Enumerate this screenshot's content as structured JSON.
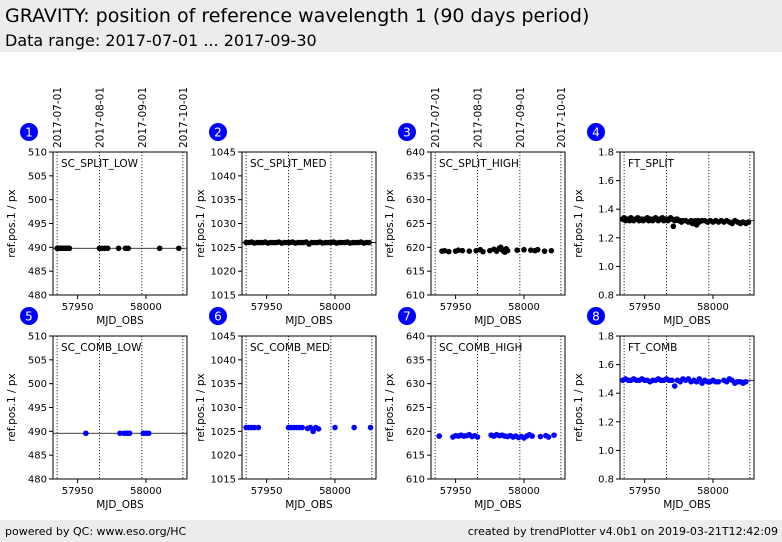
{
  "header": {
    "title": "GRAVITY: position of reference wavelength 1 (90 days period)",
    "subtitle": "Data range: 2017-07-01 ... 2017-09-30"
  },
  "footer": {
    "left": "powered by QC: www.eso.org/HC",
    "right": "created by trendPlotter v4.0b1 on 2019-03-21T12:42:09"
  },
  "colors": {
    "background_bar": "#ececec",
    "badge": "#0000ff",
    "black_series": "#000000",
    "blue_series": "#0000ff"
  },
  "chart_data": [
    {
      "type": "scatter",
      "panel": "1",
      "title": "SC_SPLIT_LOW",
      "xlabel": "MJD_OBS",
      "ylabel": "ref.pos.1 / px",
      "xlim": [
        57932,
        58030
      ],
      "ylim": [
        480,
        510
      ],
      "xticks": [
        57950,
        58000
      ],
      "yticks": [
        480,
        485,
        490,
        495,
        500,
        505,
        510
      ],
      "reference_line": 489.8,
      "date_marks": [
        57935,
        57966,
        57997,
        58027
      ],
      "date_labels": [
        "2017-07-01",
        "2017-08-01",
        "2017-09-01",
        "2017-10-01"
      ],
      "color": "#000000",
      "x": [
        57935,
        57936,
        57937,
        57938,
        57939,
        57940,
        57941,
        57942,
        57943,
        57944,
        57966,
        57968,
        57970,
        57972,
        57980,
        57985,
        57987,
        58010,
        58024
      ],
      "y": [
        489.8,
        489.8,
        489.8,
        489.8,
        489.8,
        489.8,
        489.8,
        489.8,
        489.8,
        489.8,
        489.8,
        489.8,
        489.8,
        489.8,
        489.8,
        489.8,
        489.8,
        489.8,
        489.8
      ]
    },
    {
      "type": "scatter",
      "panel": "2",
      "title": "SC_SPLIT_MED",
      "xlabel": "MJD_OBS",
      "ylabel": "ref.pos.1 / px",
      "xlim": [
        57932,
        58030
      ],
      "ylim": [
        1015,
        1045
      ],
      "xticks": [
        57950,
        58000
      ],
      "yticks": [
        1015,
        1020,
        1025,
        1030,
        1035,
        1040,
        1045
      ],
      "reference_line": 1026.0,
      "date_marks": [
        57935,
        57966,
        57997,
        58027
      ],
      "date_labels": [],
      "color": "#000000",
      "x": [
        57935,
        57937,
        57939,
        57941,
        57943,
        57945,
        57947,
        57949,
        57951,
        57953,
        57955,
        57957,
        57959,
        57961,
        57963,
        57965,
        57967,
        57969,
        57971,
        57973,
        57975,
        57977,
        57979,
        57981,
        57983,
        57985,
        57987,
        57989,
        57991,
        57993,
        57995,
        57997,
        57999,
        58001,
        58003,
        58005,
        58007,
        58009,
        58011,
        58013,
        58015,
        58017,
        58019,
        58021,
        58023,
        58025
      ],
      "y": [
        1026.0,
        1026.0,
        1026.1,
        1025.9,
        1026.0,
        1026.0,
        1026.0,
        1026.1,
        1025.9,
        1026.0,
        1026.0,
        1026.0,
        1026.1,
        1025.9,
        1026.0,
        1026.0,
        1026.0,
        1026.1,
        1025.9,
        1026.0,
        1026.0,
        1026.0,
        1026.1,
        1025.7,
        1026.0,
        1026.0,
        1026.0,
        1026.1,
        1025.9,
        1026.0,
        1026.0,
        1026.0,
        1026.1,
        1025.9,
        1026.0,
        1026.0,
        1026.0,
        1026.1,
        1025.9,
        1026.0,
        1026.0,
        1026.0,
        1026.1,
        1025.9,
        1026.0,
        1026.0
      ]
    },
    {
      "type": "scatter",
      "panel": "3",
      "title": "SC_SPLIT_HIGH",
      "xlabel": "MJD_OBS",
      "ylabel": "ref.pos.1 / px",
      "xlim": [
        57932,
        58030
      ],
      "ylim": [
        610,
        640
      ],
      "xticks": [
        57950,
        58000
      ],
      "yticks": [
        610,
        615,
        620,
        625,
        630,
        635,
        640
      ],
      "reference_line": null,
      "date_marks": [
        57935,
        57966,
        57997,
        58027
      ],
      "date_labels": [
        "2017-07-01",
        "2017-08-01",
        "2017-09-01",
        "2017-10-01"
      ],
      "color": "#000000",
      "x": [
        57940,
        57942,
        57945,
        57950,
        57952,
        57955,
        57960,
        57965,
        57968,
        57970,
        57975,
        57978,
        57980,
        57982,
        57983,
        57984,
        57985,
        57986,
        57987,
        57988,
        57995,
        58000,
        58005,
        58008,
        58010,
        58015,
        58020
      ],
      "y": [
        619.2,
        619.3,
        619.1,
        619.2,
        619.4,
        619.3,
        619.2,
        619.3,
        619.5,
        619.1,
        619.3,
        619.6,
        619.2,
        619.8,
        620.0,
        619.5,
        619.2,
        619.0,
        619.7,
        619.3,
        619.4,
        619.5,
        619.4,
        619.3,
        619.5,
        619.2,
        619.3
      ]
    },
    {
      "type": "scatter",
      "panel": "4",
      "title": "FT_SPLIT",
      "xlabel": "MJD_OBS",
      "ylabel": "ref.pos.1 / px",
      "xlim": [
        57932,
        58030
      ],
      "ylim": [
        0.8,
        1.8
      ],
      "xticks": [
        57950,
        58000
      ],
      "yticks": [
        0.8,
        1.0,
        1.2,
        1.4,
        1.6,
        1.8
      ],
      "reference_line": 1.32,
      "date_marks": [
        57935,
        57966,
        57997,
        58027
      ],
      "date_labels": [],
      "color": "#000000",
      "x": [
        57934,
        57935,
        57936,
        57937,
        57938,
        57939,
        57940,
        57941,
        57942,
        57943,
        57944,
        57945,
        57946,
        57947,
        57948,
        57949,
        57950,
        57951,
        57952,
        57953,
        57954,
        57955,
        57956,
        57957,
        57958,
        57959,
        57960,
        57961,
        57962,
        57963,
        57964,
        57965,
        57966,
        57967,
        57968,
        57969,
        57970,
        57971,
        57972,
        57973,
        57974,
        57975,
        57976,
        57977,
        57978,
        57980,
        57982,
        57984,
        57985,
        57986,
        57987,
        57988,
        57989,
        57990,
        57992,
        57994,
        57996,
        57998,
        58000,
        58002,
        58004,
        58006,
        58008,
        58010,
        58012,
        58014,
        58016,
        58018,
        58020,
        58022,
        58024,
        58026
      ],
      "y": [
        1.33,
        1.34,
        1.32,
        1.33,
        1.33,
        1.32,
        1.34,
        1.33,
        1.32,
        1.33,
        1.33,
        1.34,
        1.32,
        1.33,
        1.33,
        1.32,
        1.33,
        1.33,
        1.34,
        1.32,
        1.33,
        1.33,
        1.32,
        1.33,
        1.34,
        1.33,
        1.32,
        1.33,
        1.33,
        1.34,
        1.32,
        1.33,
        1.33,
        1.32,
        1.33,
        1.34,
        1.33,
        1.28,
        1.32,
        1.33,
        1.33,
        1.32,
        1.32,
        1.31,
        1.32,
        1.32,
        1.31,
        1.32,
        1.3,
        1.31,
        1.32,
        1.29,
        1.32,
        1.31,
        1.32,
        1.32,
        1.31,
        1.32,
        1.31,
        1.32,
        1.31,
        1.32,
        1.31,
        1.32,
        1.31,
        1.3,
        1.32,
        1.31,
        1.3,
        1.31,
        1.3,
        1.31
      ]
    },
    {
      "type": "scatter",
      "panel": "5",
      "title": "SC_COMB_LOW",
      "xlabel": "MJD_OBS",
      "ylabel": "ref.pos.1 / px",
      "xlim": [
        57932,
        58030
      ],
      "ylim": [
        480,
        510
      ],
      "xticks": [
        57950,
        58000
      ],
      "yticks": [
        480,
        485,
        490,
        495,
        500,
        505,
        510
      ],
      "reference_line": 489.6,
      "date_marks": [
        57935,
        57966,
        57997,
        58027
      ],
      "date_labels": [],
      "color": "#0000ff",
      "x": [
        57956,
        57981,
        57984,
        57986,
        57987,
        57988,
        57998,
        58000,
        58002
      ],
      "y": [
        489.6,
        489.6,
        489.6,
        489.6,
        489.6,
        489.6,
        489.6,
        489.6,
        489.6
      ]
    },
    {
      "type": "scatter",
      "panel": "6",
      "title": "SC_COMB_MED",
      "xlabel": "MJD_OBS",
      "ylabel": "ref.pos.1 / px",
      "xlim": [
        57932,
        58030
      ],
      "ylim": [
        1015,
        1045
      ],
      "xticks": [
        57950,
        58000
      ],
      "yticks": [
        1015,
        1020,
        1025,
        1030,
        1035,
        1040,
        1045
      ],
      "reference_line": null,
      "date_marks": [
        57935,
        57966,
        57997,
        58027
      ],
      "date_labels": [],
      "color": "#0000ff",
      "x": [
        57935,
        57937,
        57939,
        57941,
        57944,
        57966,
        57968,
        57970,
        57972,
        57974,
        57976,
        57980,
        57982,
        57984,
        57986,
        57988,
        58000,
        58014,
        58026
      ],
      "y": [
        1025.8,
        1025.8,
        1025.8,
        1025.8,
        1025.8,
        1025.8,
        1025.8,
        1025.8,
        1025.8,
        1025.8,
        1025.8,
        1025.6,
        1025.8,
        1025.0,
        1025.8,
        1025.5,
        1025.8,
        1025.8,
        1025.8
      ]
    },
    {
      "type": "scatter",
      "panel": "7",
      "title": "SC_COMB_HIGH",
      "xlabel": "MJD_OBS",
      "ylabel": "ref.pos.1 / px",
      "xlim": [
        57932,
        58030
      ],
      "ylim": [
        610,
        640
      ],
      "xticks": [
        57950,
        58000
      ],
      "yticks": [
        610,
        615,
        620,
        625,
        630,
        635,
        640
      ],
      "reference_line": null,
      "date_marks": [
        57935,
        57966,
        57997,
        58027
      ],
      "date_labels": [],
      "color": "#0000ff",
      "x": [
        57938,
        57948,
        57950,
        57952,
        57954,
        57956,
        57958,
        57960,
        57962,
        57964,
        57966,
        57976,
        57978,
        57980,
        57982,
        57984,
        57986,
        57988,
        57990,
        57992,
        57994,
        57996,
        57998,
        58000,
        58002,
        58004,
        58006,
        58012,
        58016,
        58018,
        58022
      ],
      "y": [
        619.0,
        618.8,
        619.1,
        619.0,
        619.2,
        619.0,
        619.1,
        619.3,
        618.9,
        619.1,
        618.8,
        619.2,
        619.0,
        619.3,
        619.1,
        619.2,
        619.0,
        618.9,
        619.1,
        618.8,
        619.0,
        618.7,
        618.9,
        618.6,
        619.0,
        619.3,
        619.0,
        618.9,
        619.1,
        618.8,
        619.2
      ]
    },
    {
      "type": "scatter",
      "panel": "8",
      "title": "FT_COMB",
      "xlabel": "MJD_OBS",
      "ylabel": "ref.pos.1 / px",
      "xlim": [
        57932,
        58030
      ],
      "ylim": [
        0.8,
        1.8
      ],
      "xticks": [
        57950,
        58000
      ],
      "yticks": [
        0.8,
        1.0,
        1.2,
        1.4,
        1.6,
        1.8
      ],
      "reference_line": 1.49,
      "date_marks": [
        57935,
        57966,
        57997,
        58027
      ],
      "date_labels": [],
      "color": "#0000ff",
      "x": [
        57934,
        57936,
        57938,
        57940,
        57942,
        57944,
        57946,
        57948,
        57950,
        57952,
        57954,
        57956,
        57958,
        57960,
        57962,
        57964,
        57966,
        57968,
        57970,
        57972,
        57974,
        57976,
        57978,
        57980,
        57982,
        57984,
        57986,
        57988,
        57990,
        57992,
        57994,
        57996,
        57998,
        58000,
        58002,
        58004,
        58008,
        58010,
        58012,
        58014,
        58016,
        58018,
        58020,
        58022,
        58024
      ],
      "y": [
        1.49,
        1.5,
        1.49,
        1.49,
        1.5,
        1.49,
        1.49,
        1.5,
        1.49,
        1.49,
        1.48,
        1.49,
        1.49,
        1.5,
        1.49,
        1.49,
        1.5,
        1.49,
        1.49,
        1.45,
        1.49,
        1.48,
        1.5,
        1.49,
        1.5,
        1.48,
        1.49,
        1.48,
        1.5,
        1.47,
        1.49,
        1.48,
        1.48,
        1.49,
        1.48,
        1.48,
        1.49,
        1.48,
        1.5,
        1.49,
        1.47,
        1.48,
        1.48,
        1.47,
        1.48
      ]
    }
  ]
}
